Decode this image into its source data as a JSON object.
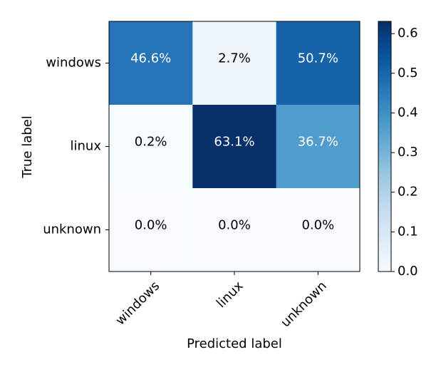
{
  "chart_data": {
    "type": "heatmap",
    "title": "",
    "xlabel": "Predicted label",
    "ylabel": "True label",
    "x_categories": [
      "windows",
      "linux",
      "unknown"
    ],
    "y_categories": [
      "windows",
      "linux",
      "unknown"
    ],
    "values": [
      [
        0.466,
        0.027,
        0.507
      ],
      [
        0.002,
        0.631,
        0.367
      ],
      [
        0.0,
        0.0,
        0.0
      ]
    ],
    "cell_labels": [
      [
        "46.6%",
        "2.7%",
        "50.7%"
      ],
      [
        "0.2%",
        "63.1%",
        "36.7%"
      ],
      [
        "0.0%",
        "0.0%",
        "0.0%"
      ]
    ],
    "colormap": "Blues",
    "colorbar": {
      "range": [
        0,
        0.631
      ],
      "ticks": [
        0.0,
        0.1,
        0.2,
        0.3,
        0.4,
        0.5,
        0.6
      ],
      "tick_labels": [
        "0.0",
        "0.1",
        "0.2",
        "0.3",
        "0.4",
        "0.5",
        "0.6"
      ]
    },
    "grid": false,
    "text_colors": {
      "light": "#ffffff",
      "dark": "#000000"
    }
  }
}
